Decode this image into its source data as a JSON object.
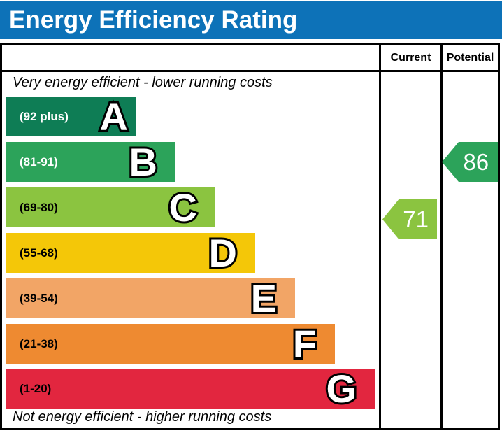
{
  "title": "Energy Efficiency Rating",
  "header_color": "#0d72b8",
  "columns": {
    "current": "Current",
    "potential": "Potential"
  },
  "captions": {
    "top": "Very energy efficient - lower running costs",
    "bottom": "Not energy efficient - higher running costs"
  },
  "bands": [
    {
      "letter": "A",
      "range": "(92 plus)",
      "color": "#0e7d55",
      "text_color": "#ffffff"
    },
    {
      "letter": "B",
      "range": "(81-91)",
      "color": "#2ca35a",
      "text_color": "#ffffff"
    },
    {
      "letter": "C",
      "range": "(69-80)",
      "color": "#8bc440",
      "text_color": "#000000"
    },
    {
      "letter": "D",
      "range": "(55-68)",
      "color": "#f4c708",
      "text_color": "#000000"
    },
    {
      "letter": "E",
      "range": "(39-54)",
      "color": "#f2a566",
      "text_color": "#000000"
    },
    {
      "letter": "F",
      "range": "(21-38)",
      "color": "#ee8a31",
      "text_color": "#000000"
    },
    {
      "letter": "G",
      "range": "(1-20)",
      "color": "#e2263f",
      "text_color": "#000000"
    }
  ],
  "ratings": {
    "current": {
      "value": "71",
      "color": "#8bc440"
    },
    "potential": {
      "value": "86",
      "color": "#2ca35a"
    }
  },
  "chart_data": {
    "type": "bar",
    "title": "Energy Efficiency Rating",
    "categories": [
      "A",
      "B",
      "C",
      "D",
      "E",
      "F",
      "G"
    ],
    "band_ranges": [
      "92 plus",
      "81-91",
      "69-80",
      "55-68",
      "39-54",
      "21-38",
      "1-20"
    ],
    "band_colors": [
      "#0e7d55",
      "#2ca35a",
      "#8bc440",
      "#f4c708",
      "#f2a566",
      "#ee8a31",
      "#e2263f"
    ],
    "bar_relative_widths": [
      186,
      244,
      300,
      357,
      414,
      470,
      528
    ],
    "current_rating": 71,
    "current_band": "C",
    "potential_rating": 86,
    "potential_band": "B",
    "legend_position": "right-columns",
    "grid": false,
    "annotations": [
      "Very energy efficient - lower running costs",
      "Not energy efficient - higher running costs"
    ]
  }
}
